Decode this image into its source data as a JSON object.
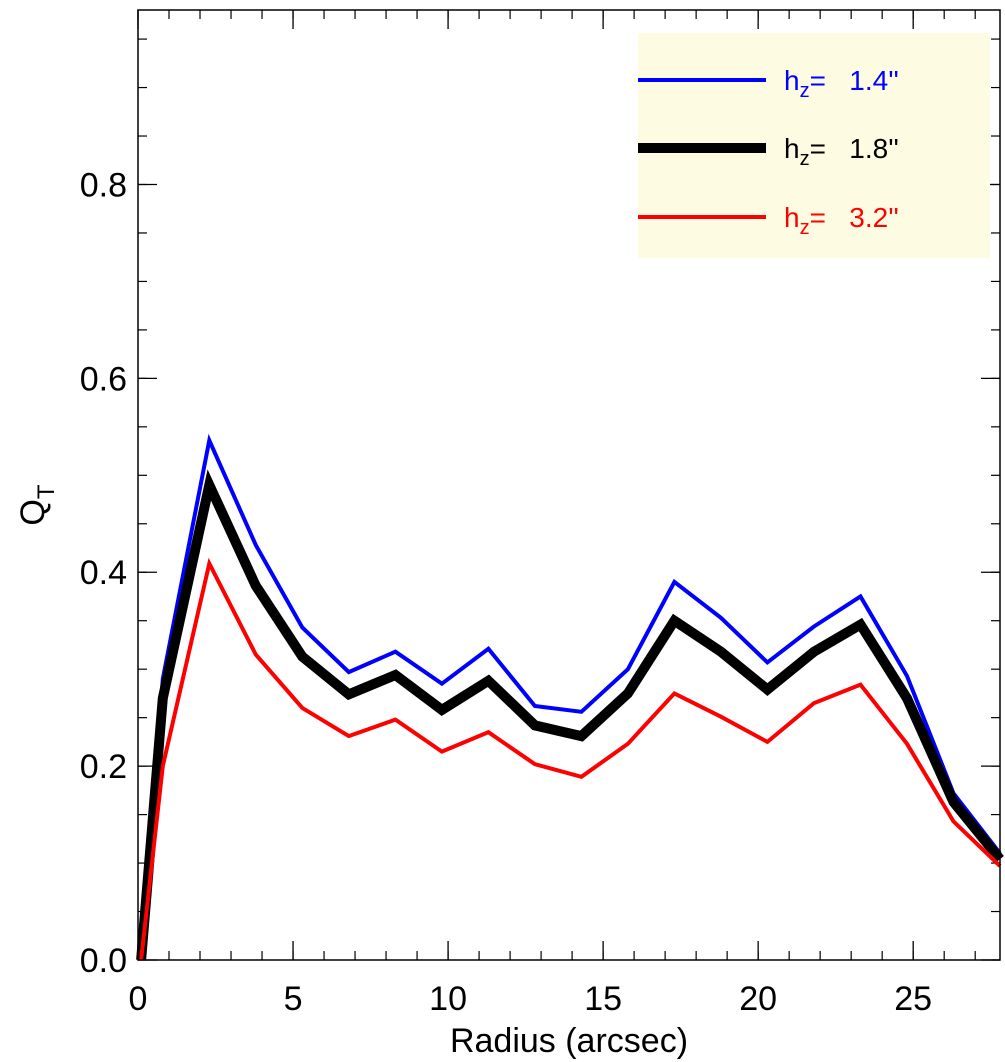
{
  "chart_data": {
    "type": "line",
    "xlabel": "Radius (arcsec)",
    "ylabel": "Q",
    "ylabel_sub": "T",
    "xlim": [
      0,
      27.8
    ],
    "ylim": [
      0,
      0.98
    ],
    "x_ticks": [
      0,
      5,
      10,
      15,
      20,
      25
    ],
    "x_tick_labels": [
      "0",
      "5",
      "10",
      "15",
      "20",
      "25"
    ],
    "x_minor_step": 1,
    "y_ticks": [
      0.0,
      0.2,
      0.4,
      0.6,
      0.8
    ],
    "y_tick_labels": [
      "0.0",
      "0.2",
      "0.4",
      "0.6",
      "0.8"
    ],
    "y_minor_step": 0.05,
    "grid": false,
    "legend_position": "top-right",
    "legend_background": "#fdfbe1",
    "x": [
      0.1,
      0.8,
      2.3,
      3.8,
      5.3,
      6.8,
      8.3,
      9.8,
      11.3,
      12.8,
      14.3,
      15.8,
      17.3,
      18.8,
      20.3,
      21.8,
      23.3,
      24.8,
      26.3,
      27.8
    ],
    "series": [
      {
        "prefix": "h",
        "sub": "z",
        "suffix": "=   1.4''",
        "color": "#0000ff",
        "width": 4,
        "values": [
          0.0,
          0.29,
          0.536,
          0.428,
          0.343,
          0.297,
          0.318,
          0.285,
          0.321,
          0.262,
          0.256,
          0.3,
          0.39,
          0.353,
          0.307,
          0.344,
          0.375,
          0.293,
          0.172,
          0.11
        ]
      },
      {
        "prefix": "h",
        "sub": "z",
        "suffix": "=   1.8''",
        "color": "#000000",
        "width": 10,
        "values": [
          0.0,
          0.27,
          0.49,
          0.386,
          0.313,
          0.274,
          0.294,
          0.258,
          0.288,
          0.242,
          0.231,
          0.275,
          0.35,
          0.318,
          0.279,
          0.318,
          0.346,
          0.27,
          0.163,
          0.104
        ]
      },
      {
        "prefix": "h",
        "sub": "z",
        "suffix": "=   3.2''",
        "color": "#ff0000",
        "width": 4,
        "values": [
          0.0,
          0.2,
          0.409,
          0.315,
          0.26,
          0.231,
          0.248,
          0.215,
          0.235,
          0.202,
          0.189,
          0.223,
          0.275,
          0.251,
          0.225,
          0.265,
          0.284,
          0.223,
          0.143,
          0.097
        ]
      }
    ]
  }
}
